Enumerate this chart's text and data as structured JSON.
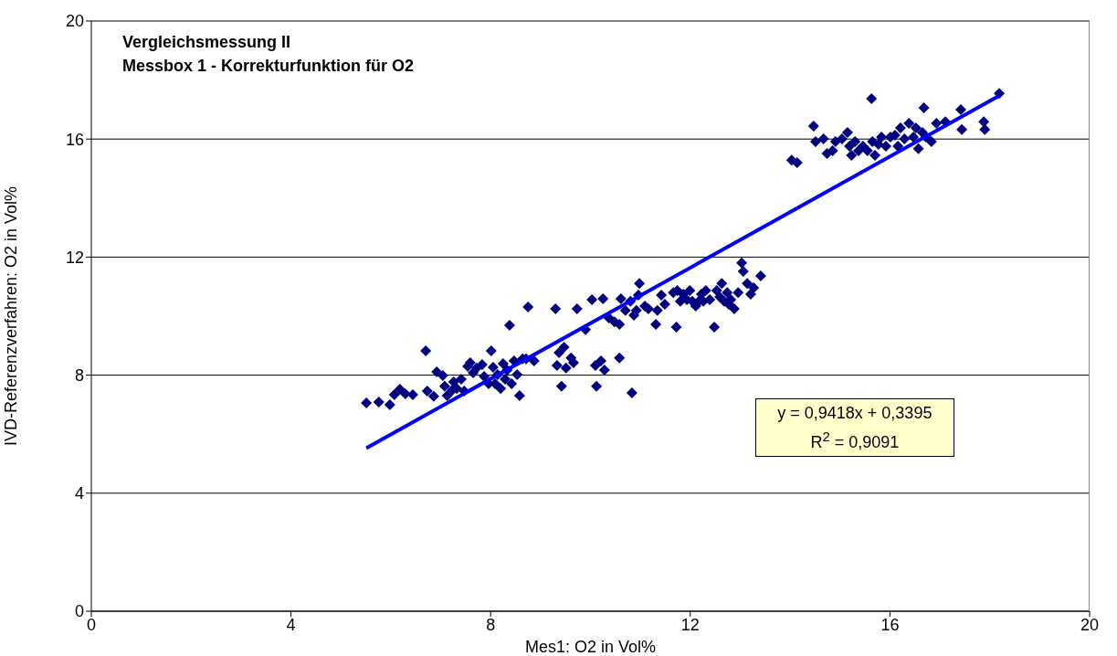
{
  "chart_data": {
    "type": "scatter",
    "title": "Vergleichsmessung II",
    "subtitle": "Messbox 1 - Korrekturfunktion für O2",
    "xlabel": "Mes1: O2 in Vol%",
    "ylabel": "IVD-Referenzverfahren: O2 in Vol%",
    "annotations": [
      "y = 0,9418x + 0,3395",
      "R$^{2}$ = 0,9091"
    ],
    "xlim": [
      0,
      20
    ],
    "xticks": [
      0,
      4,
      8,
      12,
      16,
      20
    ],
    "ylim": [
      0,
      20
    ],
    "yticks": [
      0,
      4,
      8,
      12,
      16,
      20
    ],
    "grid": "y",
    "legend": false,
    "series": [
      {
        "marker": "diamond",
        "color": "#000080",
        "x": [
          5.51,
          5.76,
          5.98,
          6.07,
          6.18,
          6.29,
          6.44,
          6.7,
          6.73,
          6.86,
          6.92,
          7.04,
          7.08,
          7.13,
          7.23,
          7.26,
          7.32,
          7.41,
          7.47,
          7.54,
          7.59,
          7.65,
          7.72,
          7.83,
          7.87,
          7.96,
          8.01,
          8.05,
          8.09,
          8.14,
          8.2,
          8.25,
          8.29,
          8.33,
          8.38,
          8.42,
          8.47,
          8.53,
          8.58,
          8.64,
          8.71,
          8.75,
          8.87,
          9.3,
          9.33,
          9.37,
          9.42,
          9.47,
          9.51,
          9.61,
          9.66,
          9.73,
          9.9,
          10.03,
          10.1,
          10.12,
          10.21,
          10.25,
          10.28,
          10.37,
          10.48,
          10.58,
          10.58,
          10.61,
          10.7,
          10.8,
          10.83,
          10.87,
          10.92,
          10.96,
          10.98,
          11.09,
          11.16,
          11.31,
          11.34,
          11.42,
          11.49,
          11.66,
          11.72,
          11.74,
          11.8,
          11.86,
          11.93,
          11.99,
          12.04,
          12.11,
          12.17,
          12.22,
          12.26,
          12.31,
          12.39,
          12.48,
          12.53,
          12.59,
          12.63,
          12.68,
          12.74,
          12.77,
          12.81,
          12.88,
          12.96,
          13.03,
          13.06,
          13.14,
          13.21,
          13.27,
          13.41,
          14.03,
          14.14,
          14.47,
          14.51,
          14.67,
          14.74,
          14.85,
          14.91,
          15.04,
          15.15,
          15.19,
          15.23,
          15.3,
          15.37,
          15.46,
          15.55,
          15.63,
          15.65,
          15.7,
          15.77,
          15.83,
          15.92,
          16.01,
          16.1,
          16.16,
          16.21,
          16.29,
          16.38,
          16.47,
          16.52,
          16.57,
          16.65,
          16.68,
          16.72,
          16.83,
          16.93,
          17.11,
          17.42,
          17.44,
          17.88,
          17.9,
          18.19
        ],
        "values": [
          7.06,
          7.09,
          7.0,
          7.34,
          7.52,
          7.37,
          7.34,
          8.82,
          7.46,
          7.28,
          8.11,
          7.99,
          7.62,
          7.31,
          7.49,
          7.77,
          7.55,
          7.86,
          7.46,
          8.3,
          8.42,
          8.08,
          8.24,
          8.36,
          7.96,
          7.71,
          8.82,
          8.27,
          7.71,
          8.02,
          7.55,
          8.39,
          7.86,
          8.17,
          9.69,
          7.71,
          8.48,
          8.02,
          7.31,
          8.55,
          8.55,
          10.31,
          8.48,
          10.25,
          8.33,
          8.76,
          7.62,
          8.95,
          8.24,
          8.58,
          8.42,
          10.25,
          9.54,
          10.56,
          8.33,
          7.62,
          8.48,
          10.59,
          8.17,
          9.94,
          9.81,
          8.58,
          9.72,
          10.59,
          10.19,
          10.5,
          7.4,
          10.03,
          10.19,
          10.71,
          11.11,
          10.34,
          10.25,
          9.72,
          10.19,
          10.71,
          10.4,
          10.8,
          9.63,
          10.87,
          10.5,
          10.74,
          10.56,
          10.87,
          10.5,
          10.34,
          10.5,
          10.74,
          10.5,
          10.87,
          10.56,
          9.63,
          10.87,
          10.65,
          11.11,
          10.5,
          10.8,
          10.4,
          10.56,
          10.25,
          10.8,
          11.8,
          11.52,
          11.11,
          10.74,
          10.96,
          11.36,
          15.29,
          15.2,
          16.44,
          15.91,
          16.01,
          15.51,
          15.6,
          15.91,
          16.01,
          16.22,
          15.76,
          15.45,
          15.91,
          15.6,
          15.76,
          15.6,
          17.37,
          15.91,
          15.45,
          15.82,
          16.07,
          15.76,
          16.07,
          16.13,
          15.76,
          16.38,
          16.01,
          16.53,
          16.07,
          16.38,
          15.67,
          16.22,
          17.06,
          16.07,
          15.91,
          16.53,
          16.59,
          17.0,
          16.32,
          16.59,
          16.32,
          17.55
        ]
      },
      {
        "type": "line",
        "color": "#0000ff",
        "x": [
          5.51,
          18.19
        ],
        "values": [
          5.53,
          17.47
        ]
      }
    ]
  }
}
